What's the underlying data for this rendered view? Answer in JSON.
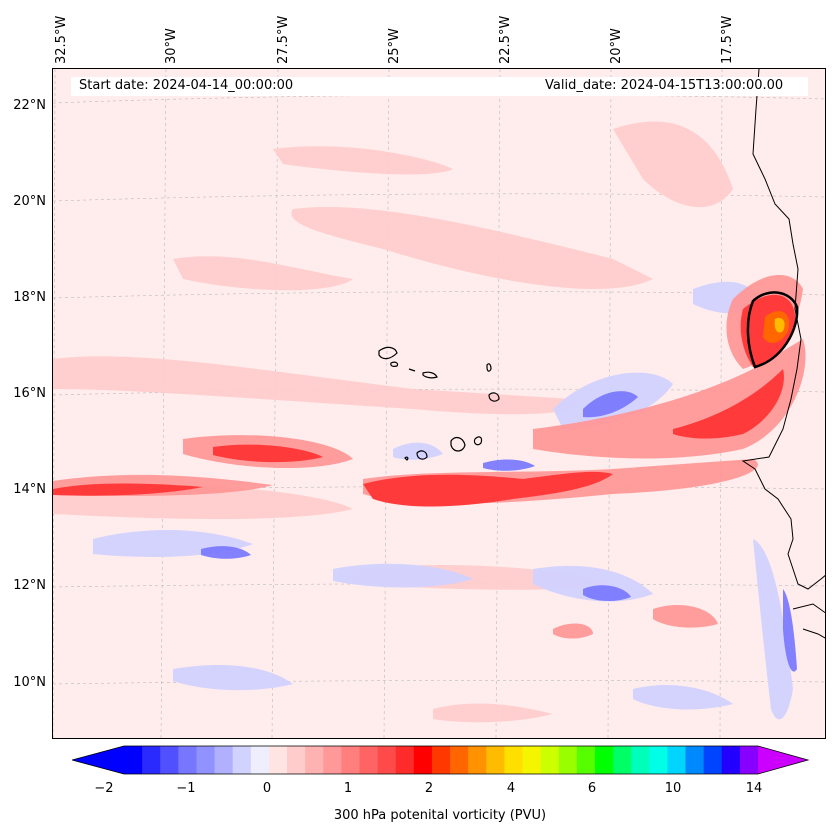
{
  "map": {
    "start_date_label": "Start date: 2024-04-14_00:00:00",
    "valid_date_label": "Valid_date: 2024-04-15T13:00:00.00",
    "longitude_labels": [
      "32.5°W",
      "30°W",
      "27.5°W",
      "25°W",
      "22.5°W",
      "20°W",
      "17.5°W"
    ],
    "latitude_labels": [
      "22°N",
      "20°N",
      "18°N",
      "16°N",
      "14°N",
      "12°N",
      "10°N"
    ],
    "background_color": "#ffecec",
    "coastline_color": "#000000"
  },
  "colorbar": {
    "label": "300 hPa potenital vorticity (PVU)",
    "tick_labels": [
      "−2",
      "−1",
      "0",
      "1",
      "2",
      "4",
      "6",
      "10",
      "14"
    ],
    "colors": [
      "#0000ff",
      "#2a2aff",
      "#5050ff",
      "#7676ff",
      "#9292ff",
      "#b0b0ff",
      "#d2d2ff",
      "#eeeeff",
      "#ffe4e4",
      "#ffcccc",
      "#ffb2b2",
      "#ff9898",
      "#ff7e7e",
      "#ff6464",
      "#ff4a4a",
      "#ff2a2a",
      "#ff0000",
      "#ff3800",
      "#ff6600",
      "#ff9200",
      "#ffbb00",
      "#ffdf00",
      "#f5f500",
      "#ccff00",
      "#99ff00",
      "#55ff00",
      "#00ff00",
      "#00ff66",
      "#00ffbb",
      "#00ffe6",
      "#00d5ff",
      "#0088ff",
      "#0044ff",
      "#2200ff",
      "#8800ff"
    ],
    "under_color": "#0000ff",
    "over_color": "#cc00ff"
  }
}
